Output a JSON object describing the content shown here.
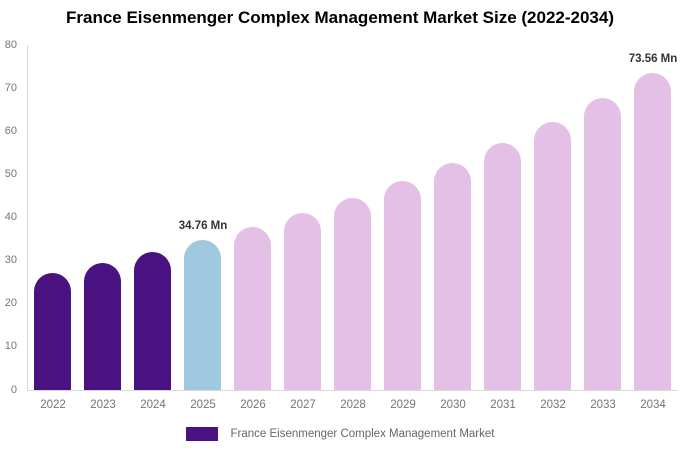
{
  "title": "France Eisenmenger Complex Management Market Size (2022-2034)",
  "legend": {
    "label": "France Eisenmenger Complex Management Market",
    "swatch_color": "#4A1280"
  },
  "chart_data": {
    "type": "bar",
    "title": "France Eisenmenger Complex Management Market Size (2022-2034)",
    "xlabel": "",
    "ylabel": "",
    "unit": "Mn",
    "categories": [
      "2022",
      "2023",
      "2024",
      "2025",
      "2026",
      "2027",
      "2028",
      "2029",
      "2030",
      "2031",
      "2032",
      "2033",
      "2034"
    ],
    "values": [
      27.08,
      29.43,
      31.98,
      34.76,
      37.78,
      41.06,
      44.62,
      48.5,
      52.71,
      57.28,
      62.25,
      67.66,
      73.56
    ],
    "series_colors": {
      "historical": "#4A1280",
      "base_year": "#A0C8DE",
      "forecast": "#E5C0E6"
    },
    "color_roles": [
      "historical",
      "historical",
      "historical",
      "base_year",
      "forecast",
      "forecast",
      "forecast",
      "forecast",
      "forecast",
      "forecast",
      "forecast",
      "forecast",
      "forecast"
    ],
    "annotations": [
      {
        "category": "2025",
        "label": "34.76 Mn"
      },
      {
        "category": "2034",
        "label": "73.56 Mn"
      }
    ],
    "ylim": [
      0,
      80
    ],
    "yticks": [
      0,
      10,
      20,
      30,
      40,
      50,
      60,
      70,
      80
    ],
    "grid": false,
    "legend_position": "bottom",
    "axis_color": "#d9d9d9",
    "tick_label_color": "#757575"
  }
}
